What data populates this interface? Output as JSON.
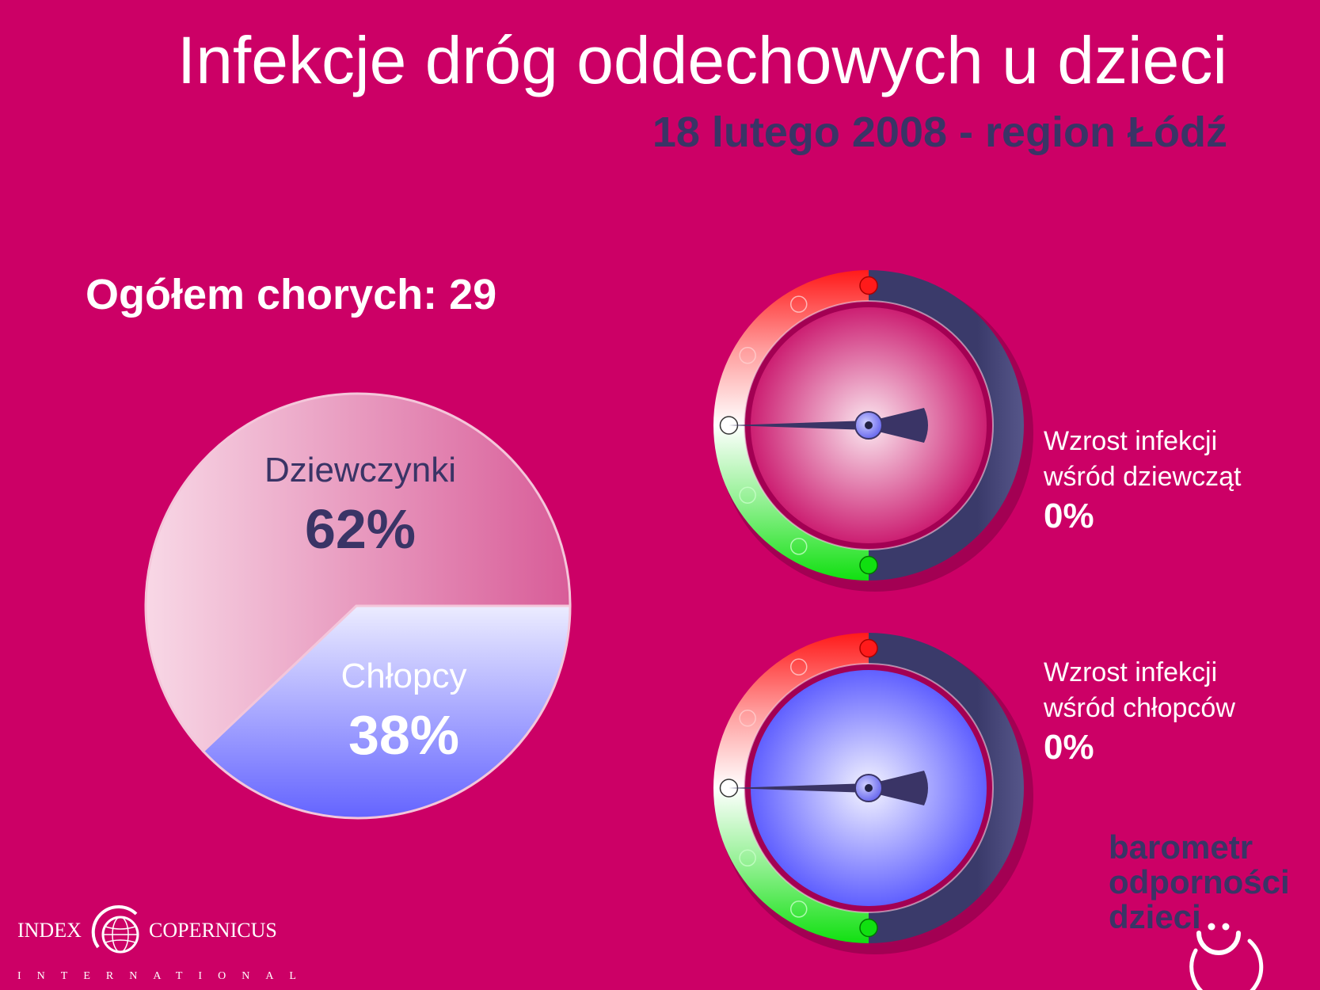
{
  "header": {
    "title": "Infekcje dróg oddechowych u dzieci",
    "subtitle": "18 lutego 2008 - region Łódź"
  },
  "summary": {
    "total_label": "Ogółem chorych: 29"
  },
  "chart_data": [
    {
      "type": "pie",
      "labels": [
        "Dziewczynki",
        "Chłopcy"
      ],
      "values": [
        62,
        38
      ],
      "value_labels": [
        "62%",
        "38%"
      ],
      "colors": [
        "#e070a0",
        "#7070ff"
      ],
      "total": 29
    },
    {
      "type": "gauge",
      "label_line1": "Wzrost infekcji",
      "label_line2": "wśród dziewcząt",
      "value": 0,
      "value_label": "0%",
      "face_color": "#cc2277"
    },
    {
      "type": "gauge",
      "label_line1": "Wzrost infekcji",
      "label_line2": "wśród chłopców",
      "value": 0,
      "value_label": "0%",
      "face_color": "#7070ff"
    }
  ],
  "brand": {
    "line1": "barometr",
    "line2": "odporności",
    "line3": "dzieci"
  },
  "logo": {
    "word1": "INDEX",
    "word2": "COPERNICUS",
    "line2": "INTERNATIONAL"
  }
}
